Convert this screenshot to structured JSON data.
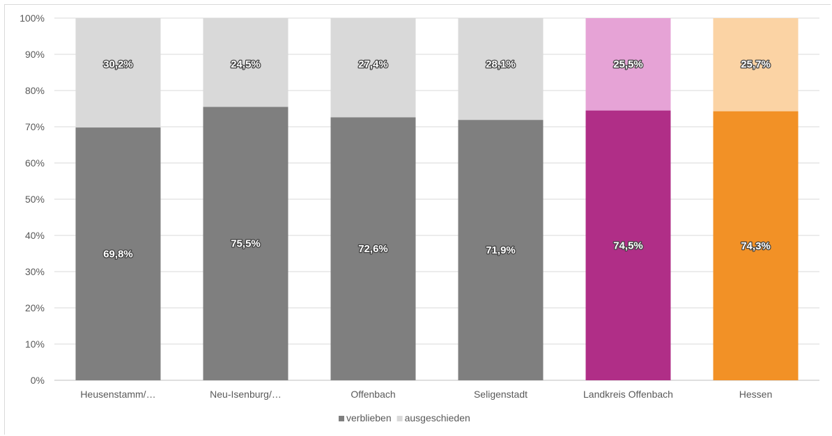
{
  "chart_data": {
    "type": "bar",
    "stacked": true,
    "categories": [
      "Heusenstamm/…",
      "Neu-Isenburg/…",
      "Offenbach",
      "Seligenstadt",
      "Landkreis Offenbach",
      "Hessen"
    ],
    "series": [
      {
        "name": "verblieben",
        "values": [
          69.8,
          75.5,
          72.6,
          71.9,
          74.5,
          74.3
        ],
        "labels": [
          "69,8%",
          "75,5%",
          "72,6%",
          "71,9%",
          "74,5%",
          "74,3%"
        ],
        "colors": [
          "#7f7f7f",
          "#7f7f7f",
          "#7f7f7f",
          "#7f7f7f",
          "#b02e87",
          "#f29126"
        ]
      },
      {
        "name": "ausgeschieden",
        "values": [
          30.2,
          24.5,
          27.4,
          28.1,
          25.5,
          25.7
        ],
        "labels": [
          "30,2%",
          "24,5%",
          "27,4%",
          "28,1%",
          "25,5%",
          "25,7%"
        ],
        "colors": [
          "#d9d9d9",
          "#d9d9d9",
          "#d9d9d9",
          "#d9d9d9",
          "#e6a3d6",
          "#fbd3a4"
        ]
      }
    ],
    "yticks": [
      "0%",
      "10%",
      "20%",
      "30%",
      "40%",
      "50%",
      "60%",
      "70%",
      "80%",
      "90%",
      "100%"
    ],
    "ylim": [
      0,
      100
    ],
    "grid": true,
    "legend_position": "bottom",
    "legend_colors": [
      "#7f7f7f",
      "#d9d9d9"
    ],
    "title": "",
    "xlabel": "",
    "ylabel": ""
  }
}
